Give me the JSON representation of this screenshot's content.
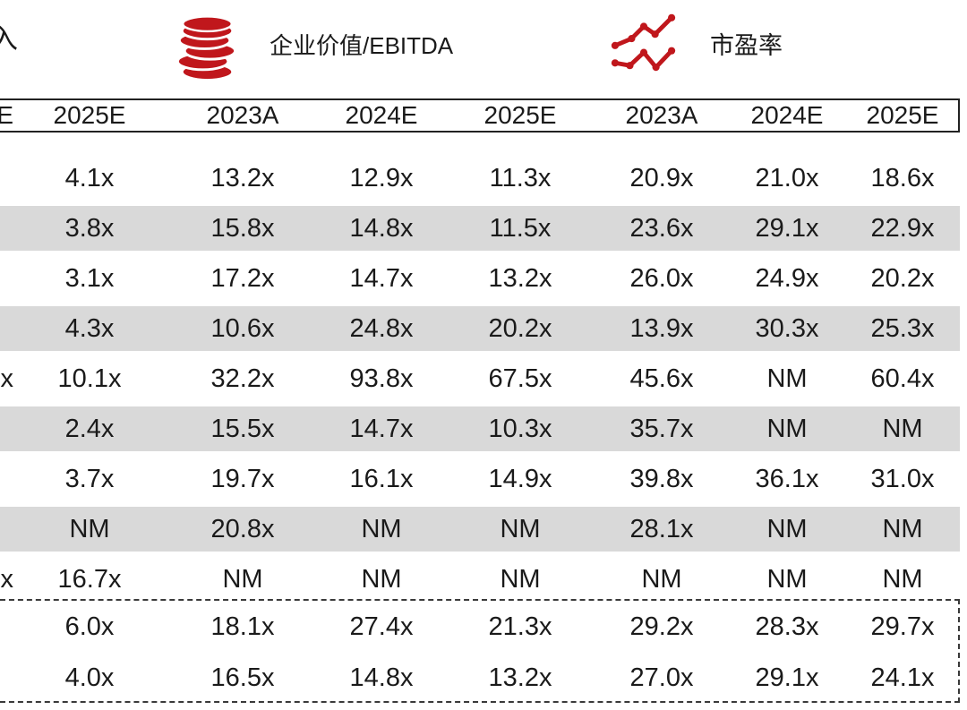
{
  "legend": {
    "revenue_label_partial": "入",
    "ebitda_label": "企业价值/EBITDA",
    "pe_label": "市盈率"
  },
  "colors": {
    "accent_red": "#c0171c",
    "row_stripe": "#d9d9d9",
    "text": "#1a1a1a"
  },
  "table": {
    "header": [
      "E",
      "2025E",
      "2023A",
      "2024E",
      "2025E",
      "2023A",
      "2024E",
      "2025E"
    ],
    "rows": [
      [
        "",
        "4.1x",
        "13.2x",
        "12.9x",
        "11.3x",
        "20.9x",
        "21.0x",
        "18.6x"
      ],
      [
        "",
        "3.8x",
        "15.8x",
        "14.8x",
        "11.5x",
        "23.6x",
        "29.1x",
        "22.9x"
      ],
      [
        "",
        "3.1x",
        "17.2x",
        "14.7x",
        "13.2x",
        "26.0x",
        "24.9x",
        "20.2x"
      ],
      [
        "",
        "4.3x",
        "10.6x",
        "24.8x",
        "20.2x",
        "13.9x",
        "30.3x",
        "25.3x"
      ],
      [
        "x",
        "10.1x",
        "32.2x",
        "93.8x",
        "67.5x",
        "45.6x",
        "NM",
        "60.4x"
      ],
      [
        "",
        "2.4x",
        "15.5x",
        "14.7x",
        "10.3x",
        "35.7x",
        "NM",
        "NM"
      ],
      [
        "",
        "3.7x",
        "19.7x",
        "16.1x",
        "14.9x",
        "39.8x",
        "36.1x",
        "31.0x"
      ],
      [
        "",
        "NM",
        "20.8x",
        "NM",
        "NM",
        "28.1x",
        "NM",
        "NM"
      ],
      [
        "x",
        "16.7x",
        "NM",
        "NM",
        "NM",
        "NM",
        "NM",
        "NM"
      ]
    ],
    "summary_rows": [
      [
        "",
        "6.0x",
        "18.1x",
        "27.4x",
        "21.3x",
        "29.2x",
        "28.3x",
        "29.7x"
      ],
      [
        "",
        "4.0x",
        "16.5x",
        "14.8x",
        "13.2x",
        "27.0x",
        "29.1x",
        "24.1x"
      ]
    ]
  }
}
